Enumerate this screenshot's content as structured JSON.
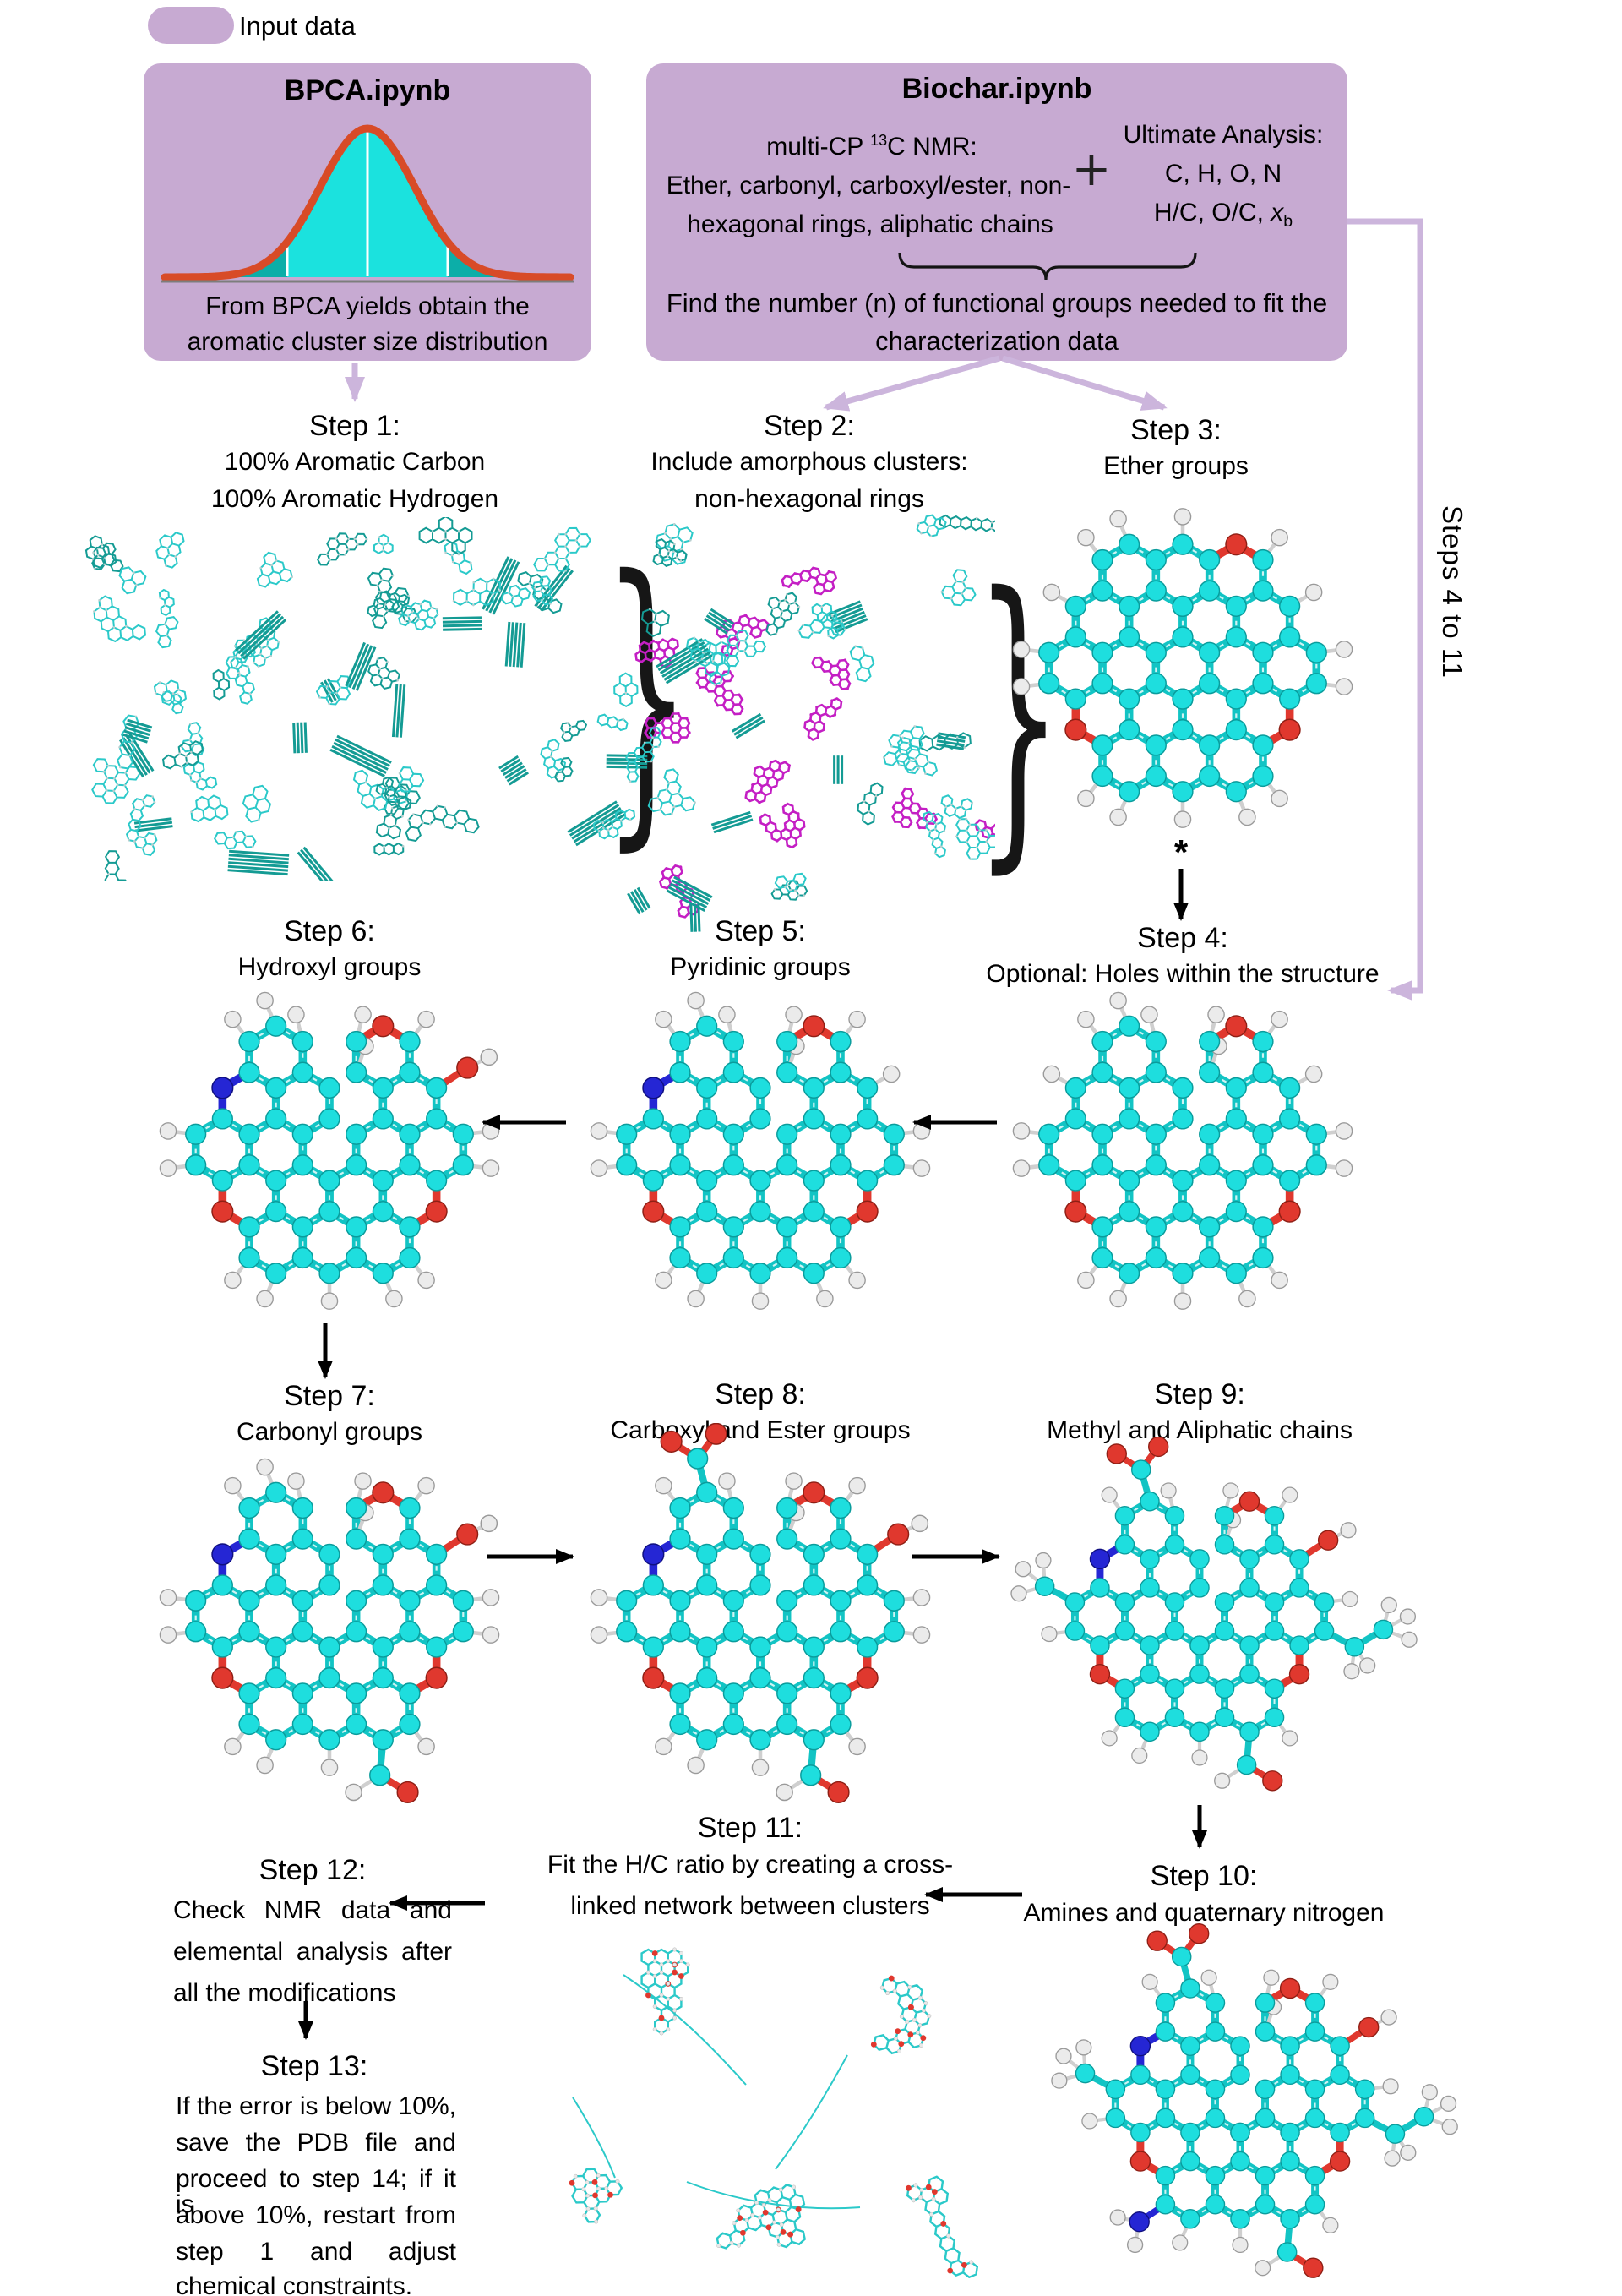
{
  "legend": {
    "label": "Input data"
  },
  "bpca_box": {
    "title": "BPCA.ipynb",
    "caption_line1": "From BPCA yields obtain the",
    "caption_line2": "aromatic cluster size distribution"
  },
  "biochar_box": {
    "title": "Biochar.ipynb",
    "nmr1a": "multi-CP ",
    "nmr1b": "13",
    "nmr1c": "C NMR:",
    "nmr2": "Ether, carbonyl, carboxyl/ester, non-",
    "nmr3": "hexagonal rings, aliphatic chains",
    "plus": "+",
    "ua1": "Ultimate Analysis:",
    "ua2": "C, H, O, N",
    "ua3a": "H/C, O/C, ",
    "ua3x": "x",
    "ua3b": "b",
    "find_line1": "Find the number (n) of functional groups needed to fit the",
    "find_line2": "characterization data"
  },
  "side_label": "Steps 4 to 11",
  "annotations": {
    "asterisk": "*"
  },
  "steps": {
    "s1": {
      "title": "Step 1:",
      "line1": "100% Aromatic Carbon",
      "line2": "100% Aromatic Hydrogen"
    },
    "s2": {
      "title": "Step 2:",
      "line1": "Include amorphous clusters:",
      "line2": "non-hexagonal rings"
    },
    "s3": {
      "title": "Step 3:",
      "line1": "Ether groups"
    },
    "s4": {
      "title": "Step 4:",
      "line1": "Optional: Holes within the structure"
    },
    "s5": {
      "title": "Step 5:",
      "line1": "Pyridinic groups"
    },
    "s6": {
      "title": "Step 6:",
      "line1": "Hydroxyl groups"
    },
    "s7": {
      "title": "Step 7:",
      "line1": "Carbonyl groups"
    },
    "s8": {
      "title": "Step 8:",
      "line1": "Carboxyl and Ester groups"
    },
    "s9": {
      "title": "Step 9:",
      "line1": "Methyl and Aliphatic chains"
    },
    "s10": {
      "title": "Step 10:",
      "line1": "Amines and quaternary nitrogen"
    },
    "s11": {
      "title": "Step 11:",
      "line1": "Fit the H/C ratio by creating a cross-",
      "line2": "linked network between clusters"
    },
    "s12": {
      "title": "Step 12:",
      "lines": [
        "Check NMR data and",
        "elemental analysis after",
        "all the modifications"
      ]
    },
    "s13": {
      "title": "Step 13:",
      "lines": [
        "If the error is below 10%,",
        "save the PDB file and",
        "proceed to step 14; if it is",
        "above 10%, restart from",
        "step 1 and adjust",
        "chemical constraints."
      ]
    }
  },
  "molecules": {
    "step3": {
      "notch": false,
      "hole": false,
      "features": [
        "ether_top",
        "ether_bottom"
      ]
    },
    "step4": {
      "notch": true,
      "hole": true,
      "features": [
        "ether_top",
        "ether_bottom"
      ]
    },
    "step5": {
      "notch": true,
      "hole": true,
      "features": [
        "ether_top",
        "ether_bottom",
        "pyridinic_n"
      ]
    },
    "step6": {
      "notch": true,
      "hole": true,
      "features": [
        "ether_top",
        "ether_bottom",
        "pyridinic_n",
        "hydroxyl"
      ]
    },
    "step7": {
      "notch": true,
      "hole": true,
      "features": [
        "ether_top",
        "ether_bottom",
        "pyridinic_n",
        "hydroxyl",
        "carbonyl"
      ]
    },
    "step8": {
      "notch": true,
      "hole": true,
      "features": [
        "ether_top",
        "ether_bottom",
        "pyridinic_n",
        "hydroxyl",
        "carbonyl",
        "carboxyl"
      ]
    },
    "step9": {
      "notch": true,
      "hole": true,
      "features": [
        "ether_top",
        "ether_bottom",
        "pyridinic_n",
        "hydroxyl",
        "carbonyl",
        "carboxyl",
        "methyl",
        "ethyl"
      ]
    },
    "step10": {
      "notch": true,
      "hole": true,
      "features": [
        "ether_top",
        "ether_bottom",
        "pyridinic_n",
        "hydroxyl",
        "carbonyl",
        "carboxyl",
        "methyl",
        "ethyl",
        "amine"
      ]
    }
  },
  "figures": {
    "step1_field": {
      "seed": 7,
      "count": 66,
      "amorphous": 0
    },
    "step2_field": {
      "seed": 13,
      "count": 50,
      "amorphous": 12
    },
    "step11_network": {
      "seed": 5
    }
  },
  "colors": {
    "box_purple": "#c7aad2",
    "arrow_purple": "#ccb5dc",
    "carbon": "#1edede",
    "bond": "#12c4c4",
    "hydrogen": "#ebebeb",
    "oxygen": "#e0382e",
    "nitrogen": "#2526d4",
    "amorphous": "#c41fc4",
    "cluster_teal": "#2bc9c9",
    "cluster_teal_dark": "#149b94",
    "gauss_curve": "#d84b27",
    "gauss_bright": "#1be2de",
    "gauss_mid": "#0caea8",
    "gauss_tail": "#0b9790",
    "gauss_baseline": "#7d7d7d"
  }
}
